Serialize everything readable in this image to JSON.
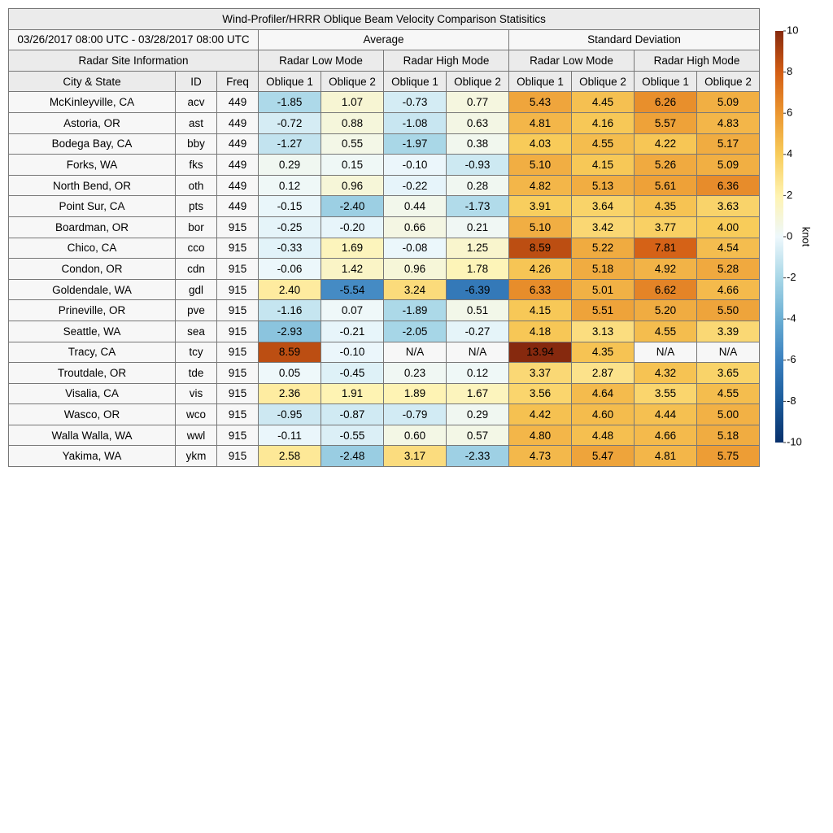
{
  "title": "Wind-Profiler/HRRR Oblique Beam Velocity Comparison Statisitics",
  "date_range": "03/26/2017 08:00 UTC - 03/28/2017 08:00 UTC",
  "groups": [
    "Average",
    "Standard Deviation"
  ],
  "site_info": "Radar Site Information",
  "modes": [
    "Radar Low Mode",
    "Radar High Mode",
    "Radar Low Mode",
    "Radar High Mode"
  ],
  "columns": [
    "City & State",
    "ID",
    "Freq",
    "Oblique 1",
    "Oblique 2",
    "Oblique 1",
    "Oblique 2",
    "Oblique 1",
    "Oblique 2",
    "Oblique 1",
    "Oblique 2"
  ],
  "rows": [
    [
      "McKinleyville, CA",
      "acv",
      "449",
      "-1.85",
      "1.07",
      "-0.73",
      "0.77",
      "5.43",
      "4.45",
      "6.26",
      "5.09"
    ],
    [
      "Astoria, OR",
      "ast",
      "449",
      "-0.72",
      "0.88",
      "-1.08",
      "0.63",
      "4.81",
      "4.16",
      "5.57",
      "4.83"
    ],
    [
      "Bodega Bay, CA",
      "bby",
      "449",
      "-1.27",
      "0.55",
      "-1.97",
      "0.38",
      "4.03",
      "4.55",
      "4.22",
      "5.17"
    ],
    [
      "Forks, WA",
      "fks",
      "449",
      "0.29",
      "0.15",
      "-0.10",
      "-0.93",
      "5.10",
      "4.15",
      "5.26",
      "5.09"
    ],
    [
      "North Bend, OR",
      "oth",
      "449",
      "0.12",
      "0.96",
      "-0.22",
      "0.28",
      "4.82",
      "5.13",
      "5.61",
      "6.36"
    ],
    [
      "Point Sur, CA",
      "pts",
      "449",
      "-0.15",
      "-2.40",
      "0.44",
      "-1.73",
      "3.91",
      "3.64",
      "4.35",
      "3.63"
    ],
    [
      "Boardman, OR",
      "bor",
      "915",
      "-0.25",
      "-0.20",
      "0.66",
      "0.21",
      "5.10",
      "3.42",
      "3.77",
      "4.00"
    ],
    [
      "Chico, CA",
      "cco",
      "915",
      "-0.33",
      "1.69",
      "-0.08",
      "1.25",
      "8.59",
      "5.22",
      "7.81",
      "4.54"
    ],
    [
      "Condon, OR",
      "cdn",
      "915",
      "-0.06",
      "1.42",
      "0.96",
      "1.78",
      "4.26",
      "5.18",
      "4.92",
      "5.28"
    ],
    [
      "Goldendale, WA",
      "gdl",
      "915",
      "2.40",
      "-5.54",
      "3.24",
      "-6.39",
      "6.33",
      "5.01",
      "6.62",
      "4.66"
    ],
    [
      "Prineville, OR",
      "pve",
      "915",
      "-1.16",
      "0.07",
      "-1.89",
      "0.51",
      "4.15",
      "5.51",
      "5.20",
      "5.50"
    ],
    [
      "Seattle, WA",
      "sea",
      "915",
      "-2.93",
      "-0.21",
      "-2.05",
      "-0.27",
      "4.18",
      "3.13",
      "4.55",
      "3.39"
    ],
    [
      "Tracy, CA",
      "tcy",
      "915",
      "8.59",
      "-0.10",
      "N/A",
      "N/A",
      "13.94",
      "4.35",
      "N/A",
      "N/A"
    ],
    [
      "Troutdale, OR",
      "tde",
      "915",
      "0.05",
      "-0.45",
      "0.23",
      "0.12",
      "3.37",
      "2.87",
      "4.32",
      "3.65"
    ],
    [
      "Visalia, CA",
      "vis",
      "915",
      "2.36",
      "1.91",
      "1.89",
      "1.67",
      "3.56",
      "4.64",
      "3.55",
      "4.55"
    ],
    [
      "Wasco, OR",
      "wco",
      "915",
      "-0.95",
      "-0.87",
      "-0.79",
      "0.29",
      "4.42",
      "4.60",
      "4.44",
      "5.00"
    ],
    [
      "Walla Walla, WA",
      "wwl",
      "915",
      "-0.11",
      "-0.55",
      "0.60",
      "0.57",
      "4.80",
      "4.48",
      "4.66",
      "5.18"
    ],
    [
      "Yakima, WA",
      "ykm",
      "915",
      "2.58",
      "-2.48",
      "3.17",
      "-2.33",
      "4.73",
      "5.47",
      "4.81",
      "5.75"
    ]
  ],
  "colorbar": {
    "label": "knot",
    "ticks": [
      10,
      8,
      6,
      4,
      2,
      0,
      -2,
      -4,
      -6,
      -8,
      -10
    ],
    "colors": [
      "#08306b",
      "#1b5b9b",
      "#3a80bf",
      "#6aaed3",
      "#a8d7e7",
      "#eef8fc",
      "#fff3b0",
      "#f8cc5a",
      "#eb9630",
      "#d35d14",
      "#86290e"
    ]
  }
}
